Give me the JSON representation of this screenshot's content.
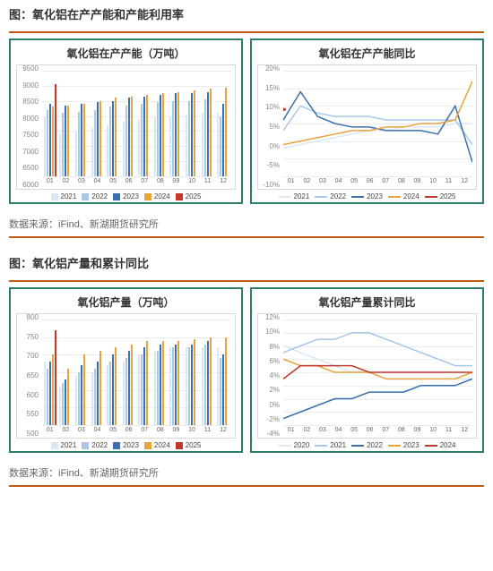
{
  "figure1": {
    "title": "图：氧化铝在产产能和产能利用率",
    "source": "数据来源：iFind、新湖期货研究所",
    "chartA": {
      "type": "bar",
      "title": "氧化铝在产产能（万吨）",
      "ylim": [
        6000,
        9500
      ],
      "yticks": [
        6000,
        6500,
        7000,
        7500,
        8000,
        8500,
        9000,
        9500
      ],
      "categories": [
        "01",
        "02",
        "03",
        "04",
        "05",
        "06",
        "07",
        "08",
        "09",
        "10",
        "11",
        "12"
      ],
      "series": [
        {
          "name": "2021",
          "color": "#d9e8f5",
          "values": [
            8000,
            7400,
            7500,
            7600,
            7700,
            7800,
            7900,
            7950,
            8000,
            8050,
            8100,
            8100
          ]
        },
        {
          "name": "2022",
          "color": "#a9c8e8",
          "values": [
            8200,
            8100,
            8150,
            8200,
            8300,
            8350,
            8400,
            8450,
            8500,
            8500,
            8550,
            8000
          ]
        },
        {
          "name": "2023",
          "color": "#3a6fb0",
          "values": [
            8400,
            8350,
            8400,
            8450,
            8500,
            8600,
            8650,
            8700,
            8750,
            8750,
            8800,
            8400
          ]
        },
        {
          "name": "2024",
          "color": "#e8a33d",
          "values": [
            8300,
            8350,
            8400,
            8500,
            8600,
            8650,
            8700,
            8750,
            8800,
            8850,
            8900,
            8950
          ]
        },
        {
          "name": "2025",
          "color": "#c0392b",
          "values": [
            9050,
            null,
            null,
            null,
            null,
            null,
            null,
            null,
            null,
            null,
            null,
            null
          ]
        }
      ],
      "grid_color": "#ececec",
      "background_color": "#ffffff",
      "border_color": "#2e7d6b",
      "label_fontsize": 8,
      "title_fontsize": 12
    },
    "chartB": {
      "type": "line",
      "title": "氧化铝在产产能同比",
      "ylim": [
        -10,
        20
      ],
      "yticks": [
        "-10%",
        "-5%",
        "0%",
        "5%",
        "10%",
        "15%",
        "20%"
      ],
      "categories": [
        "01",
        "02",
        "03",
        "04",
        "05",
        "06",
        "07",
        "08",
        "09",
        "10",
        "11",
        "12"
      ],
      "series": [
        {
          "name": "2021",
          "color": "#d9e8f5",
          "width": 1.5,
          "values": [
            -2,
            -1,
            0,
            1,
            2,
            3,
            3,
            4,
            4,
            4,
            5,
            5
          ]
        },
        {
          "name": "2022",
          "color": "#a9c8e8",
          "width": 1.5,
          "values": [
            3,
            10,
            8,
            7,
            7,
            7,
            6,
            6,
            6,
            6,
            6,
            -1
          ]
        },
        {
          "name": "2023",
          "color": "#3a6fb0",
          "width": 1.5,
          "values": [
            6,
            14,
            7,
            5,
            4,
            4,
            3,
            3,
            3,
            2,
            10,
            -6
          ]
        },
        {
          "name": "2024",
          "color": "#e8a33d",
          "width": 1.5,
          "values": [
            -1,
            0,
            1,
            2,
            3,
            3,
            4,
            4,
            5,
            5,
            6,
            17
          ]
        },
        {
          "name": "2025",
          "color": "#c0392b",
          "width": 1.5,
          "values": [
            9,
            null,
            null,
            null,
            null,
            null,
            null,
            null,
            null,
            null,
            null,
            null
          ]
        }
      ],
      "grid_color": "#ececec",
      "background_color": "#ffffff",
      "border_color": "#2e7d6b"
    }
  },
  "figure2": {
    "title": "图：氧化铝产量和累计同比",
    "source": "数据来源：iFind、新湖期货研究所",
    "chartA": {
      "type": "bar",
      "title": "氧化铝产量（万吨）",
      "ylim": [
        500,
        800
      ],
      "yticks": [
        500,
        550,
        600,
        650,
        700,
        750,
        800
      ],
      "categories": [
        "01",
        "02",
        "03",
        "04",
        "05",
        "06",
        "07",
        "08",
        "09",
        "10",
        "11",
        "12"
      ],
      "series": [
        {
          "name": "2021",
          "color": "#d9e8f5",
          "values": [
            680,
            610,
            640,
            650,
            670,
            680,
            700,
            710,
            720,
            720,
            720,
            720
          ]
        },
        {
          "name": "2022",
          "color": "#a9c8e8",
          "values": [
            660,
            620,
            650,
            660,
            680,
            690,
            700,
            710,
            720,
            720,
            730,
            690
          ]
        },
        {
          "name": "2023",
          "color": "#3a6fb0",
          "values": [
            680,
            630,
            670,
            680,
            700,
            710,
            720,
            730,
            730,
            730,
            740,
            700
          ]
        },
        {
          "name": "2024",
          "color": "#e8a33d",
          "values": [
            700,
            660,
            700,
            710,
            720,
            730,
            740,
            740,
            740,
            745,
            750,
            750
          ]
        },
        {
          "name": "2025",
          "color": "#c0392b",
          "values": [
            770,
            null,
            null,
            null,
            null,
            null,
            null,
            null,
            null,
            null,
            null,
            null
          ]
        }
      ],
      "grid_color": "#ececec",
      "background_color": "#ffffff",
      "border_color": "#2e7d6b",
      "label_fontsize": 8,
      "title_fontsize": 12
    },
    "chartB": {
      "type": "line",
      "title": "氧化铝产量累计同比",
      "ylim": [
        -4,
        12
      ],
      "yticks": [
        "-4%",
        "-2%",
        "0%",
        "2%",
        "4%",
        "6%",
        "8%",
        "10%",
        "12%"
      ],
      "categories": [
        "01",
        "02",
        "03",
        "04",
        "05",
        "06",
        "07",
        "08",
        "09",
        "10",
        "11",
        "12"
      ],
      "series": [
        {
          "name": "2020",
          "color": "#d9e8f5",
          "width": 1.5,
          "values": [
            8,
            7,
            6,
            5,
            4,
            4,
            3,
            3,
            3,
            3,
            3,
            3
          ]
        },
        {
          "name": "2021",
          "color": "#a9c8e8",
          "width": 1.5,
          "values": [
            7,
            8,
            9,
            9,
            10,
            10,
            9,
            8,
            7,
            6,
            5,
            5
          ]
        },
        {
          "name": "2022",
          "color": "#3a6fb0",
          "width": 1.5,
          "values": [
            -3,
            -2,
            -1,
            0,
            0,
            1,
            1,
            1,
            2,
            2,
            2,
            3
          ]
        },
        {
          "name": "2023",
          "color": "#e8a33d",
          "width": 1.5,
          "values": [
            6,
            5,
            5,
            4,
            4,
            4,
            3,
            3,
            3,
            3,
            3,
            4
          ]
        },
        {
          "name": "2024",
          "color": "#c0392b",
          "width": 1.5,
          "values": [
            3,
            5,
            5,
            5,
            5,
            4,
            4,
            4,
            4,
            4,
            4,
            4
          ]
        }
      ],
      "grid_color": "#ececec",
      "background_color": "#ffffff",
      "border_color": "#2e7d6b"
    }
  },
  "colors": {
    "divider": "#c35a13",
    "chart_border": "#2e7d6b",
    "text": "#333333"
  }
}
